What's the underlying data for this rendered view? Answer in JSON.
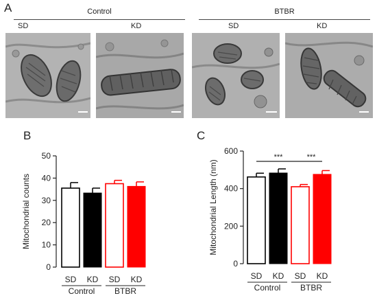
{
  "panel_a": {
    "letter": "A",
    "groups": [
      {
        "label": "Control",
        "conditions": [
          "SD",
          "KD"
        ]
      },
      {
        "label": "BTBR",
        "conditions": [
          "SD",
          "KD"
        ]
      }
    ],
    "image_descriptions": [
      "micrograph-control-sd",
      "micrograph-control-kd",
      "micrograph-btbr-sd",
      "micrograph-btbr-kd"
    ]
  },
  "colors": {
    "control_sd_fill": "#ffffff",
    "control_sd_stroke": "#000000",
    "control_kd_fill": "#000000",
    "btbr_sd_fill": "#ffffff",
    "btbr_sd_stroke": "#ff0000",
    "btbr_kd_fill": "#ff0000"
  },
  "chart_data": [
    {
      "panel_letter": "B",
      "type": "bar",
      "categories": [
        "SD",
        "KD",
        "SD",
        "KD"
      ],
      "groups": [
        {
          "label": "Control",
          "categories": [
            0,
            1
          ]
        },
        {
          "label": "BTBR",
          "categories": [
            2,
            3
          ]
        }
      ],
      "values": [
        35.5,
        33.3,
        37.5,
        36.3
      ],
      "errors": [
        2.5,
        2.2,
        1.5,
        2.0
      ],
      "ylabel": "Mitochondrial counts",
      "ylim": [
        0,
        50
      ],
      "yticks": [
        0,
        10,
        20,
        30,
        40,
        50
      ],
      "significance": []
    },
    {
      "panel_letter": "C",
      "type": "bar",
      "categories": [
        "SD",
        "KD",
        "SD",
        "KD"
      ],
      "groups": [
        {
          "label": "Control",
          "categories": [
            0,
            1
          ]
        },
        {
          "label": "BTBR",
          "categories": [
            2,
            3
          ]
        }
      ],
      "values": [
        462,
        483,
        410,
        476
      ],
      "errors": [
        20,
        22,
        12,
        20
      ],
      "ylabel": "Mitochondrial Length (nm)",
      "ylim": [
        0,
        600
      ],
      "yticks": [
        0,
        200,
        400,
        600
      ],
      "significance": [
        {
          "from": 0,
          "to": 2,
          "label": "***",
          "y": 545
        },
        {
          "from": 2,
          "to": 3,
          "label": "***",
          "y": 545
        }
      ]
    }
  ]
}
